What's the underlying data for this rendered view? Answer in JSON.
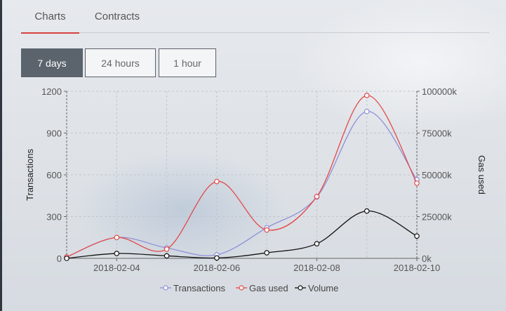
{
  "tabs": [
    {
      "label": "Charts",
      "active": true
    },
    {
      "label": "Contracts",
      "active": false
    }
  ],
  "ranges": [
    {
      "label": "7 days",
      "active": true
    },
    {
      "label": "24 hours",
      "active": false
    },
    {
      "label": "1 hour",
      "active": false
    }
  ],
  "colors": {
    "accent": "#d7403f",
    "transactions": "#8f8fd8",
    "gas_used": "#e24a4a",
    "volume": "#111111"
  },
  "chart_data": {
    "type": "line",
    "x": [
      "2018-02-03",
      "2018-02-04",
      "2018-02-05",
      "2018-02-06",
      "2018-02-07",
      "2018-02-08",
      "2018-02-09",
      "2018-02-10"
    ],
    "x_tick_labels": [
      "2018-02-04",
      "2018-02-06",
      "2018-02-08",
      "2018-02-10"
    ],
    "y_left": {
      "label": "Transactions",
      "ticks": [
        "0",
        "300",
        "600",
        "900",
        "1200"
      ],
      "range": [
        0,
        1200
      ]
    },
    "y_right": {
      "label": "Gas used",
      "ticks": [
        "0k",
        "25000k",
        "50000k",
        "75000k",
        "100000k"
      ],
      "range": [
        0,
        100000
      ]
    },
    "grid": true,
    "legend_position": "bottom",
    "series": [
      {
        "name": "Transactions",
        "axis": "left",
        "values": [
          10,
          150,
          75,
          25,
          220,
          440,
          1055,
          565
        ]
      },
      {
        "name": "Gas used",
        "axis": "right",
        "values": [
          800,
          12500,
          5500,
          46000,
          17000,
          37000,
          97500,
          45000
        ]
      },
      {
        "name": "Volume",
        "axis": "left",
        "values": [
          0,
          35,
          18,
          3,
          40,
          105,
          340,
          160
        ]
      }
    ]
  }
}
